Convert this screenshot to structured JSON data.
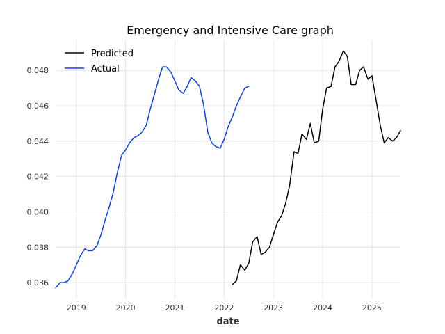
{
  "chart_data": {
    "type": "line",
    "title": "Emergency and Intensive Care graph",
    "xlabel": "date",
    "ylabel": "",
    "grid": true,
    "legend_position": "top-left",
    "xlim": [
      2018.58,
      2025.58
    ],
    "ylim": [
      0.0351,
      0.0497
    ],
    "xticks": [
      2019,
      2020,
      2021,
      2022,
      2023,
      2024,
      2025
    ],
    "xtick_labels": [
      "2019",
      "2020",
      "2021",
      "2022",
      "2023",
      "2024",
      "2025"
    ],
    "yticks": [
      0.036,
      0.038,
      0.04,
      0.042,
      0.044,
      0.046,
      0.048
    ],
    "ytick_labels": [
      "0.036",
      "0.038",
      "0.040",
      "0.042",
      "0.044",
      "0.046",
      "0.048"
    ],
    "series": [
      {
        "name": "Predicted",
        "color": "#000000",
        "x": [
          2022.17,
          2022.25,
          2022.33,
          2022.42,
          2022.5,
          2022.58,
          2022.67,
          2022.75,
          2022.83,
          2022.92,
          2023.0,
          2023.08,
          2023.17,
          2023.25,
          2023.33,
          2023.42,
          2023.5,
          2023.58,
          2023.67,
          2023.75,
          2023.83,
          2023.92,
          2024.0,
          2024.08,
          2024.17,
          2024.25,
          2024.33,
          2024.42,
          2024.5,
          2024.58,
          2024.67,
          2024.75,
          2024.83,
          2024.92,
          2025.0,
          2025.08,
          2025.17,
          2025.25,
          2025.33,
          2025.42,
          2025.5,
          2025.58
        ],
        "y": [
          0.0359,
          0.0361,
          0.037,
          0.0367,
          0.0371,
          0.0383,
          0.0386,
          0.0376,
          0.0377,
          0.038,
          0.0387,
          0.0394,
          0.0398,
          0.0405,
          0.0415,
          0.0434,
          0.0433,
          0.0444,
          0.0441,
          0.045,
          0.0439,
          0.044,
          0.0458,
          0.047,
          0.0471,
          0.0482,
          0.0485,
          0.0491,
          0.0488,
          0.0472,
          0.0472,
          0.048,
          0.0482,
          0.0475,
          0.0477,
          0.0464,
          0.0449,
          0.0439,
          0.0442,
          0.044,
          0.0442,
          0.0446
        ]
      },
      {
        "name": "Actual",
        "color": "#0d3fe8",
        "x": [
          2018.58,
          2018.67,
          2018.75,
          2018.83,
          2018.92,
          2019.0,
          2019.08,
          2019.17,
          2019.25,
          2019.33,
          2019.42,
          2019.5,
          2019.58,
          2019.67,
          2019.75,
          2019.83,
          2019.92,
          2020.0,
          2020.08,
          2020.17,
          2020.25,
          2020.33,
          2020.42,
          2020.5,
          2020.58,
          2020.67,
          2020.75,
          2020.83,
          2020.92,
          2021.0,
          2021.08,
          2021.17,
          2021.25,
          2021.33,
          2021.42,
          2021.5,
          2021.58,
          2021.67,
          2021.75,
          2021.83,
          2021.92,
          2022.0,
          2022.08,
          2022.17,
          2022.25,
          2022.33,
          2022.42,
          2022.5
        ],
        "y": [
          0.0357,
          0.036,
          0.036,
          0.0361,
          0.0365,
          0.037,
          0.0375,
          0.0379,
          0.0378,
          0.0378,
          0.0381,
          0.0387,
          0.0395,
          0.0403,
          0.0411,
          0.0422,
          0.0432,
          0.0435,
          0.0439,
          0.0442,
          0.0443,
          0.0445,
          0.0449,
          0.0458,
          0.0466,
          0.0475,
          0.0482,
          0.0482,
          0.0479,
          0.0474,
          0.0469,
          0.0467,
          0.0471,
          0.0476,
          0.0474,
          0.0471,
          0.0461,
          0.0445,
          0.0439,
          0.0437,
          0.0436,
          0.0441,
          0.0448,
          0.0454,
          0.046,
          0.0465,
          0.047,
          0.0471
        ]
      }
    ]
  }
}
